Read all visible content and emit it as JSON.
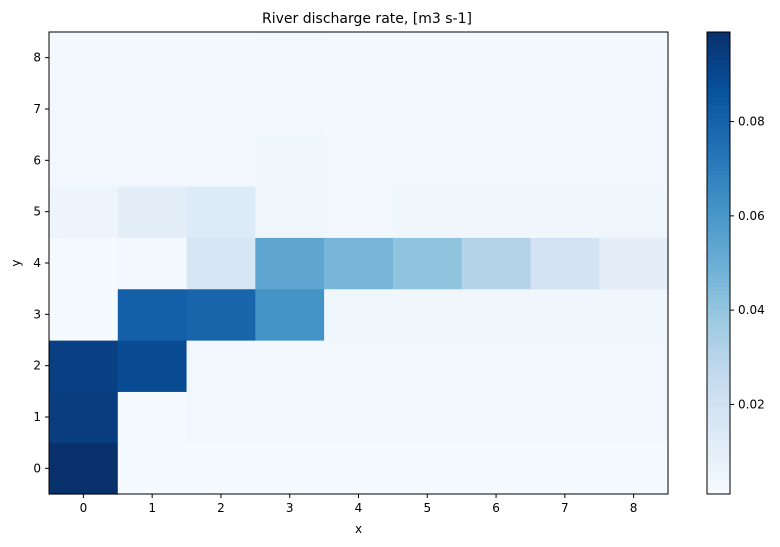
{
  "chart_data": {
    "type": "heatmap",
    "title": "River discharge rate, [m3 s-1]",
    "xlabel": "x",
    "ylabel": "y",
    "x": [
      0,
      1,
      2,
      3,
      4,
      5,
      6,
      7,
      8
    ],
    "y": [
      0,
      1,
      2,
      3,
      4,
      5,
      6,
      7,
      8
    ],
    "xlim": [
      -0.5,
      8.5
    ],
    "ylim": [
      -0.5,
      8.5
    ],
    "colormap": "Blues",
    "vmin": 0.001,
    "vmax": 0.099,
    "colorbar_ticks": [
      0.02,
      0.04,
      0.06,
      0.08
    ],
    "colorbar_tick_labels": [
      "0.02",
      "0.04",
      "0.06",
      "0.08"
    ],
    "values": [
      [
        0.099,
        0.002,
        0.002,
        0.002,
        0.002,
        0.002,
        0.002,
        0.002,
        0.002
      ],
      [
        0.094,
        0.002,
        0.004,
        0.004,
        0.004,
        0.004,
        0.004,
        0.004,
        0.004
      ],
      [
        0.093,
        0.089,
        0.004,
        0.004,
        0.004,
        0.004,
        0.004,
        0.004,
        0.004
      ],
      [
        0.002,
        0.081,
        0.079,
        0.062,
        0.005,
        0.005,
        0.005,
        0.005,
        0.005
      ],
      [
        0.002,
        0.003,
        0.017,
        0.054,
        0.047,
        0.041,
        0.031,
        0.019,
        0.011
      ],
      [
        0.006,
        0.011,
        0.014,
        0.005,
        0.004,
        0.005,
        0.005,
        0.005,
        0.005
      ],
      [
        0.004,
        0.004,
        0.004,
        0.005,
        0.004,
        0.004,
        0.004,
        0.004,
        0.004
      ],
      [
        0.004,
        0.004,
        0.004,
        0.004,
        0.003,
        0.004,
        0.004,
        0.004,
        0.004
      ],
      [
        0.003,
        0.003,
        0.003,
        0.004,
        0.003,
        0.003,
        0.003,
        0.003,
        0.003
      ]
    ]
  }
}
